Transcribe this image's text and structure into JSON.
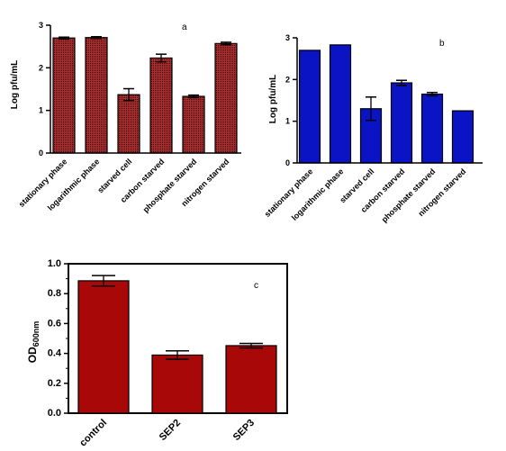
{
  "chart_data": [
    {
      "id": "a",
      "type": "bar",
      "panel_label": "a",
      "categories": [
        "stationary phase",
        "logarithmic phase",
        "starved cell",
        "carbon starved",
        "phosphate starved",
        "nitrogen starved"
      ],
      "values": [
        2.7,
        2.71,
        1.37,
        2.23,
        1.33,
        2.57
      ],
      "errors": [
        0.02,
        0.02,
        0.14,
        0.09,
        0.03,
        0.03
      ],
      "ylabel": "Log pfu/mL",
      "ylim": [
        0,
        3
      ],
      "yticks": [
        0,
        1,
        2,
        3
      ],
      "bar_color": "#a52222",
      "bar_pattern": "dotted"
    },
    {
      "id": "b",
      "type": "bar",
      "panel_label": "b",
      "categories": [
        "stationary phase",
        "logarithmic phase",
        "starved cell",
        "carbon starved",
        "phosphate starved",
        "nitrogen starved"
      ],
      "values": [
        2.7,
        2.83,
        1.3,
        1.92,
        1.65,
        1.25
      ],
      "errors": [
        0.0,
        0.0,
        0.28,
        0.06,
        0.04,
        0.0
      ],
      "ylabel": "Log pfu/mL",
      "ylim": [
        0,
        3
      ],
      "yticks": [
        0,
        1,
        2,
        3
      ],
      "bar_color": "#0a14c4"
    },
    {
      "id": "c",
      "type": "bar",
      "panel_label": "c",
      "categories": [
        "control",
        "SEP2",
        "SEP3"
      ],
      "values": [
        0.886,
        0.389,
        0.452
      ],
      "errors": [
        0.035,
        0.028,
        0.015
      ],
      "ylabel_main": "OD",
      "ylabel_sub": "600nm",
      "ylim": [
        0,
        1.0
      ],
      "yticks": [
        "0.0",
        "0.2",
        "0.4",
        "0.6",
        "0.8",
        "1.0"
      ],
      "bar_color": "#a80808"
    }
  ]
}
